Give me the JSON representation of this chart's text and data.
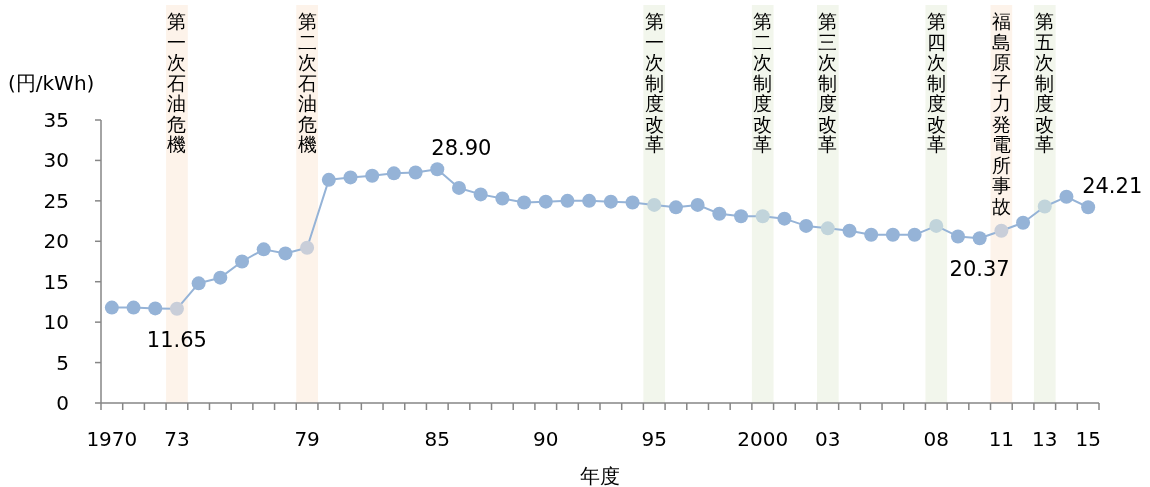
{
  "chart_data": {
    "type": "line",
    "xlabel": "年度",
    "ylabel": "(円/kWh)",
    "categories": [
      "1970",
      null,
      null,
      "73",
      null,
      null,
      null,
      null,
      null,
      "79",
      null,
      null,
      null,
      null,
      null,
      "85",
      null,
      null,
      null,
      null,
      "90",
      null,
      null,
      null,
      null,
      "95",
      null,
      null,
      null,
      null,
      "2000",
      null,
      null,
      "03",
      null,
      null,
      null,
      null,
      "08",
      null,
      null,
      "11",
      null,
      "13",
      null,
      "15"
    ],
    "series": [
      {
        "color": "#95b3d7",
        "values": [
          11.8,
          11.8,
          11.7,
          11.65,
          14.8,
          15.5,
          17.5,
          19.0,
          18.5,
          19.2,
          27.6,
          27.9,
          28.1,
          28.4,
          28.5,
          28.9,
          26.6,
          25.8,
          25.3,
          24.8,
          24.9,
          25.0,
          25.0,
          24.9,
          24.8,
          24.5,
          24.2,
          24.5,
          23.4,
          23.1,
          23.1,
          22.8,
          21.9,
          21.6,
          21.3,
          20.8,
          20.8,
          20.8,
          21.9,
          20.6,
          20.37,
          21.3,
          22.3,
          24.3,
          25.5,
          24.21
        ],
        "colors": [
          "#95b3d7",
          "#95b3d7",
          "#95b3d7",
          "#c9ced9",
          "#95b3d7",
          "#95b3d7",
          "#95b3d7",
          "#95b3d7",
          "#95b3d7",
          "#c9ced9",
          "#95b3d7",
          "#95b3d7",
          "#95b3d7",
          "#95b3d7",
          "#95b3d7",
          "#95b3d7",
          "#95b3d7",
          "#95b3d7",
          "#95b3d7",
          "#95b3d7",
          "#95b3d7",
          "#95b3d7",
          "#95b3d7",
          "#95b3d7",
          "#95b3d7",
          "#c1d4db",
          "#95b3d7",
          "#95b3d7",
          "#95b3d7",
          "#95b3d7",
          "#c1d4db",
          "#95b3d7",
          "#95b3d7",
          "#c1d4db",
          "#95b3d7",
          "#95b3d7",
          "#95b3d7",
          "#95b3d7",
          "#c1d4db",
          "#95b3d7",
          "#95b3d7",
          "#c9ced9",
          "#95b3d7",
          "#c1d4db",
          "#95b3d7",
          "#95b3d7"
        ],
        "value_labels": [
          null,
          null,
          null,
          "11.65",
          null,
          null,
          null,
          null,
          null,
          null,
          null,
          null,
          null,
          null,
          null,
          "28.90",
          null,
          null,
          null,
          null,
          null,
          null,
          null,
          null,
          null,
          null,
          null,
          null,
          null,
          null,
          null,
          null,
          null,
          null,
          null,
          null,
          null,
          null,
          null,
          null,
          "20.37",
          null,
          null,
          null,
          null,
          "24.21"
        ]
      }
    ],
    "ylim": [
      0,
      35
    ],
    "yticks": [
      0,
      5,
      10,
      15,
      20,
      25,
      30,
      35
    ],
    "marker": "circle",
    "line_style": "solid",
    "grid": false,
    "bands": [
      {
        "axis": "x",
        "from": "73",
        "to": "73",
        "label": "第一次石油危機",
        "color": "#fdf3ea"
      },
      {
        "axis": "x",
        "from": "79",
        "to": "79",
        "label": "第二次石油危機",
        "color": "#fdf3ea"
      },
      {
        "axis": "x",
        "from": "95",
        "to": "95",
        "label": "第一次制度改革",
        "color": "#f2f6ec"
      },
      {
        "axis": "x",
        "from": "2000",
        "to": "2000",
        "label": "第二次制度改革",
        "color": "#f2f6ec"
      },
      {
        "axis": "x",
        "from": "03",
        "to": "03",
        "label": "第三次制度改革",
        "color": "#f2f6ec"
      },
      {
        "axis": "x",
        "from": "08",
        "to": "08",
        "label": "第四次制度改革",
        "color": "#f2f6ec"
      },
      {
        "axis": "x",
        "from": "11",
        "to": "11",
        "label": "福島原子力発電所事故",
        "color": "#fdf3ea"
      },
      {
        "axis": "x",
        "from": "13",
        "to": "13",
        "label": "第五次制度改革",
        "color": "#f2f6ec"
      }
    ]
  }
}
